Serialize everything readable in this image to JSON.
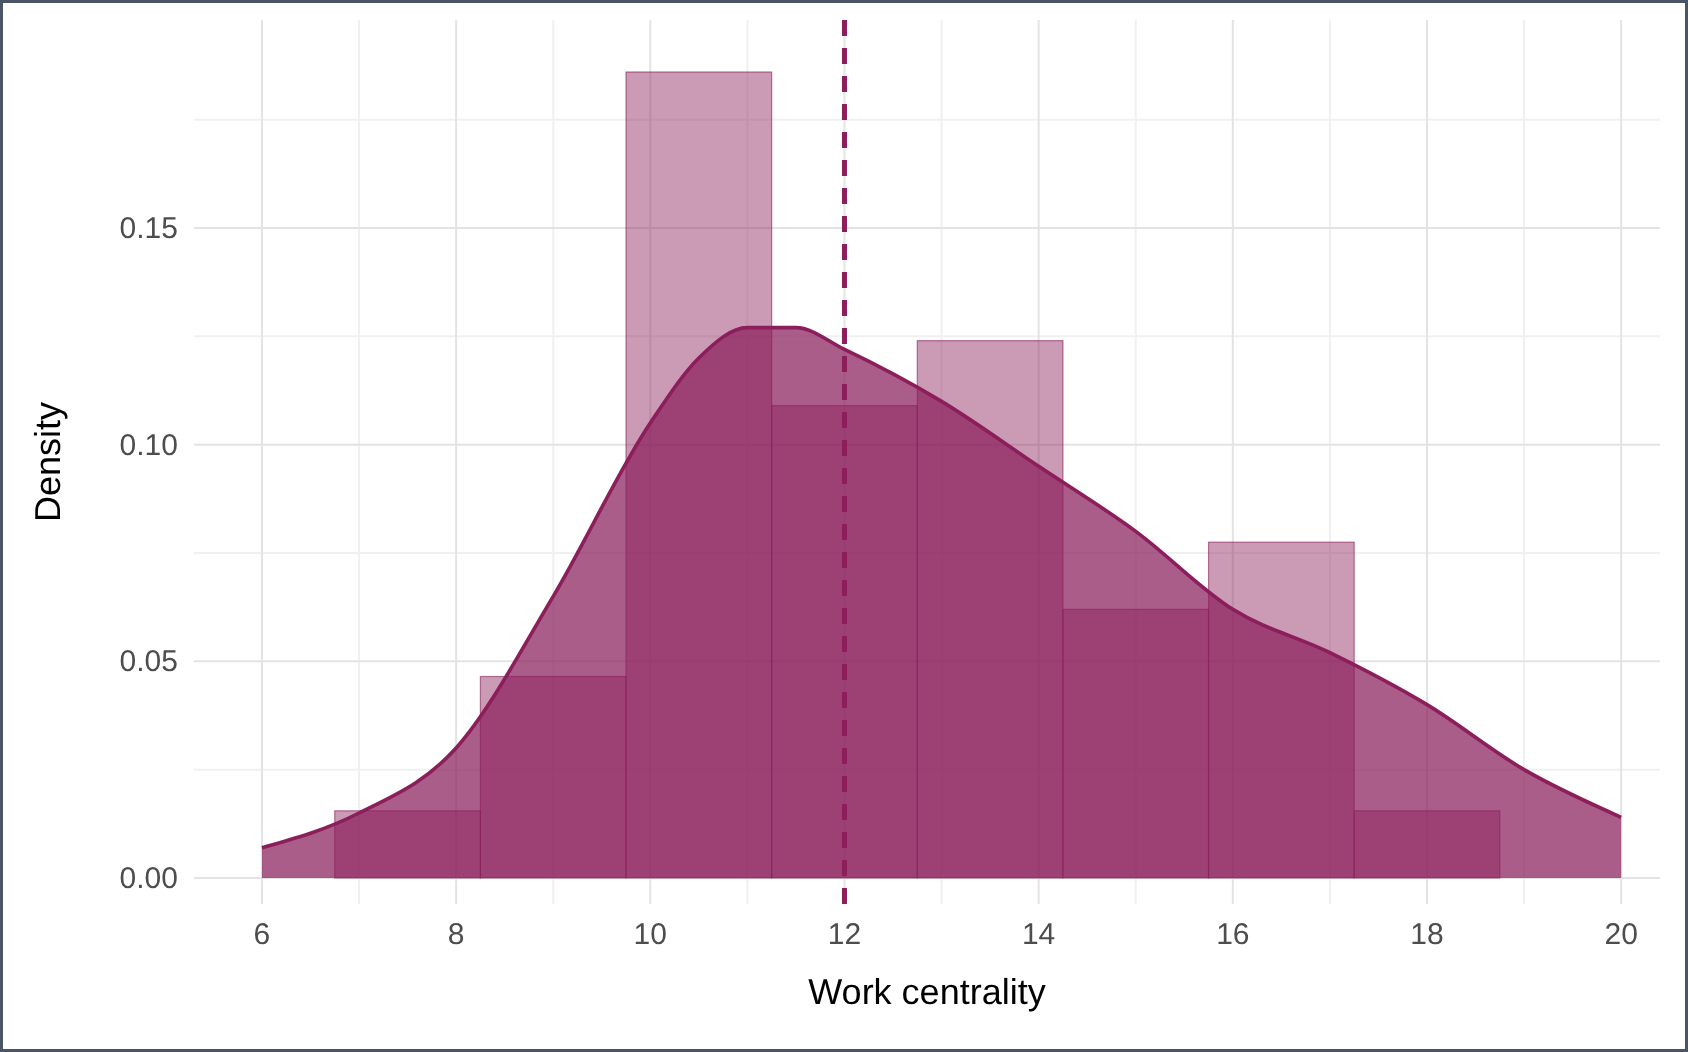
{
  "chart_data": {
    "type": "histogram",
    "xlabel": "Work centrality",
    "ylabel": "Density",
    "xlim": [
      5.3,
      20.4
    ],
    "ylim": [
      -0.006,
      0.198
    ],
    "xticks": [
      6,
      8,
      10,
      12,
      14,
      16,
      18,
      20
    ],
    "yticks": [
      {
        "value": 0,
        "label": "0.00"
      },
      {
        "value": 0.05,
        "label": "0.05"
      },
      {
        "value": 0.1,
        "label": "0.10"
      },
      {
        "value": 0.15,
        "label": "0.15"
      }
    ],
    "grid": true,
    "series": [
      {
        "type": "histogram",
        "color": "#8b1e5b",
        "bins": [
          6.75,
          8.25,
          9.75,
          11.25,
          12.75,
          14.25,
          15.75,
          17.25,
          18.75
        ],
        "values": [
          0.0155,
          0.0465,
          0.186,
          0.109,
          0.124,
          0.062,
          0.0775,
          0.0155
        ]
      },
      {
        "type": "area",
        "color": "#8b1e5b",
        "x": [
          6,
          7,
          8,
          9,
          10,
          10.5,
          11,
          11.5,
          12,
          13,
          14,
          15,
          16,
          17,
          18,
          19,
          20
        ],
        "values": [
          0.007,
          0.015,
          0.03,
          0.065,
          0.105,
          0.12,
          0.127,
          0.127,
          0.122,
          0.11,
          0.095,
          0.08,
          0.062,
          0.052,
          0.04,
          0.025,
          0.014
        ]
      }
    ],
    "ref_lines": [
      {
        "axis": "x",
        "value": 12,
        "color": "#8b1e5b",
        "line_style": "dashed"
      }
    ]
  }
}
